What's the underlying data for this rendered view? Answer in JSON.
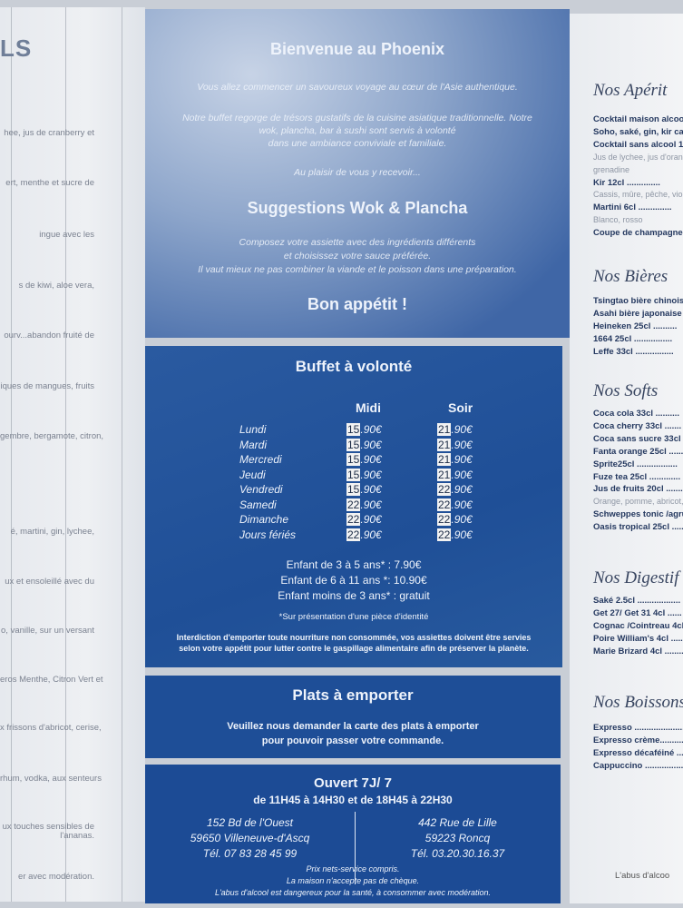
{
  "left_panel": {
    "heading": "LS",
    "lines": [
      "hee, jus de cranberry et",
      "ert, menthe et sucre de",
      "ingue avec les",
      "s de kiwi, aloe vera,",
      "ourv...abandon fruité de",
      "iques de mangues, fruits",
      "gembre, bergamote, citron,",
      "é, martini, gin, lychee,",
      "ux et ensoleillé avec du",
      "o, vanille, sur un versant",
      "eros Menthe, Citron Vert et",
      "x frissons d'abricot, cerise,",
      "rhum, vodka, aux senteurs",
      "ux touches sensibles de",
      "l'ananas.",
      "er avec modération."
    ]
  },
  "welcome": {
    "title": "Bienvenue au Phoenix",
    "intro": "Vous allez commencer un savoureux voyage au cœur de l'Asie authentique.",
    "p1": "Notre buffet regorge de trésors gustatifs de la cuisine asiatique traditionnelle. Notre",
    "p2": "wok, plancha, bar à sushi sont servis à volonté",
    "p3": "dans une ambiance conviviale et familiale.",
    "p4": "Au plaisir de vous y recevoir...",
    "sugg_title": "Suggestions Wok & Plancha",
    "s1": "Composez votre assiette avec des ingrédients différents",
    "s2": "et choisissez votre sauce préférée.",
    "s3": "Il vaut mieux ne pas combiner la viande et le poisson dans une préparation.",
    "bon": "Bon appétit !"
  },
  "buffet": {
    "title": "Buffet à volonté",
    "col_midi": "Midi",
    "col_soir": "Soir",
    "rows": [
      {
        "day": "Lundi",
        "midi_int": "15",
        "midi_dec": ".90€",
        "soir_int": "21",
        "soir_dec": ".90€"
      },
      {
        "day": "Mardi",
        "midi_int": "15",
        "midi_dec": ".90€",
        "soir_int": "21",
        "soir_dec": ".90€"
      },
      {
        "day": "Mercredi",
        "midi_int": "15",
        "midi_dec": ".90€",
        "soir_int": "21",
        "soir_dec": ".90€"
      },
      {
        "day": "Jeudi",
        "midi_int": "15",
        "midi_dec": ".90€",
        "soir_int": "21",
        "soir_dec": ".90€"
      },
      {
        "day": "Vendredi",
        "midi_int": "15",
        "midi_dec": ".90€",
        "soir_int": "22",
        "soir_dec": ".90€"
      },
      {
        "day": "Samedi",
        "midi_int": "22",
        "midi_dec": ".90€",
        "soir_int": "22",
        "soir_dec": ".90€"
      },
      {
        "day": "Dimanche",
        "midi_int": "22",
        "midi_dec": ".90€",
        "soir_int": "22",
        "soir_dec": ".90€"
      },
      {
        "day": "Jours fériés",
        "midi_int": "22",
        "midi_dec": ".90€",
        "soir_int": "22",
        "soir_dec": ".90€"
      }
    ],
    "child1": "Enfant de 3 à 5 ans* : 7.90€",
    "child2": "Enfant de 6 à 11 ans *: 10.90€",
    "child3": "Enfant moins de 3 ans* : gratuit",
    "note": "*Sur présentation d'une pièce d'identité",
    "warn1": "Interdiction d'emporter toute nourriture non consommée, vos assiettes doivent être servies",
    "warn2": "selon votre appétit pour lutter contre le gaspillage alimentaire afin de préserver la planète."
  },
  "takeaway": {
    "title": "Plats à emporter",
    "l1": "Veuillez nous demander la carte des plats à emporter",
    "l2": "pour pouvoir passer votre commande."
  },
  "info": {
    "open": "Ouvert 7J/ 7",
    "hours": "de 11H45 à 14H30 et de 18H45 à 22H30",
    "a1": [
      "152 Bd de l'Ouest",
      "59650 Villeneuve-d'Ascq",
      "Tél. 07 83 28 45 99"
    ],
    "a2": [
      "442 Rue de Lille",
      "59223 Roncq",
      "Tél. 03.20.30.16.37"
    ],
    "f1": "Prix nets-service compris.",
    "f2": "La maison n'accepte pas de chèque.",
    "f3": "L'abus d'alcool est dangereux pour la santé, à consommer avec modération."
  },
  "right_panel": {
    "aperitifs": {
      "title": "Nos Apérit",
      "items": [
        "Cocktail maison alcoo",
        "Soho, saké, gin, kir cassis",
        "Cocktail sans alcool 1",
        "Jus de lychee, jus d'orang",
        "grenadine",
        "Kir 12cl ..............",
        "Cassis, mûre, pêche, viola",
        "Martini 6cl ..............",
        "Blanco, rosso",
        "Coupe de champagne"
      ]
    },
    "bieres": {
      "title": "Nos Bières",
      "items": [
        "Tsingtao bière chinoise",
        "Asahi bière japonaise",
        "Heineken 25cl ..........",
        "1664 25cl ................",
        "Leffe 33cl ................"
      ]
    },
    "softs": {
      "title": "Nos Softs",
      "items": [
        "Coca cola 33cl ..........",
        "Coca cherry 33cl .......",
        "Coca sans sucre 33cl ..",
        "Fanta orange 25cl ......",
        "Sprite25cl .................",
        "Fuze tea 25cl .............",
        "Jus de fruits 20cl .......",
        "Orange, pomme, abricot, a",
        "Schweppes tonic /agrun",
        "Oasis tropical 25cl ......"
      ]
    },
    "digestifs": {
      "title": "Nos Digestif",
      "items": [
        "Saké 2.5cl ..................",
        "Get 27/ Get 31  4cl ......",
        "Cognac /Cointreau 4cl ...",
        "Poire William's 4cl .........",
        "Marie Brizard 4cl ..........."
      ]
    },
    "boissons": {
      "title": "Nos Boissons",
      "items": [
        "Expresso ......................",
        "Expresso crème..............",
        "Expresso décaféiné ........",
        "Cappuccino ...................."
      ]
    },
    "footer": "L'abus d'alcoo"
  }
}
